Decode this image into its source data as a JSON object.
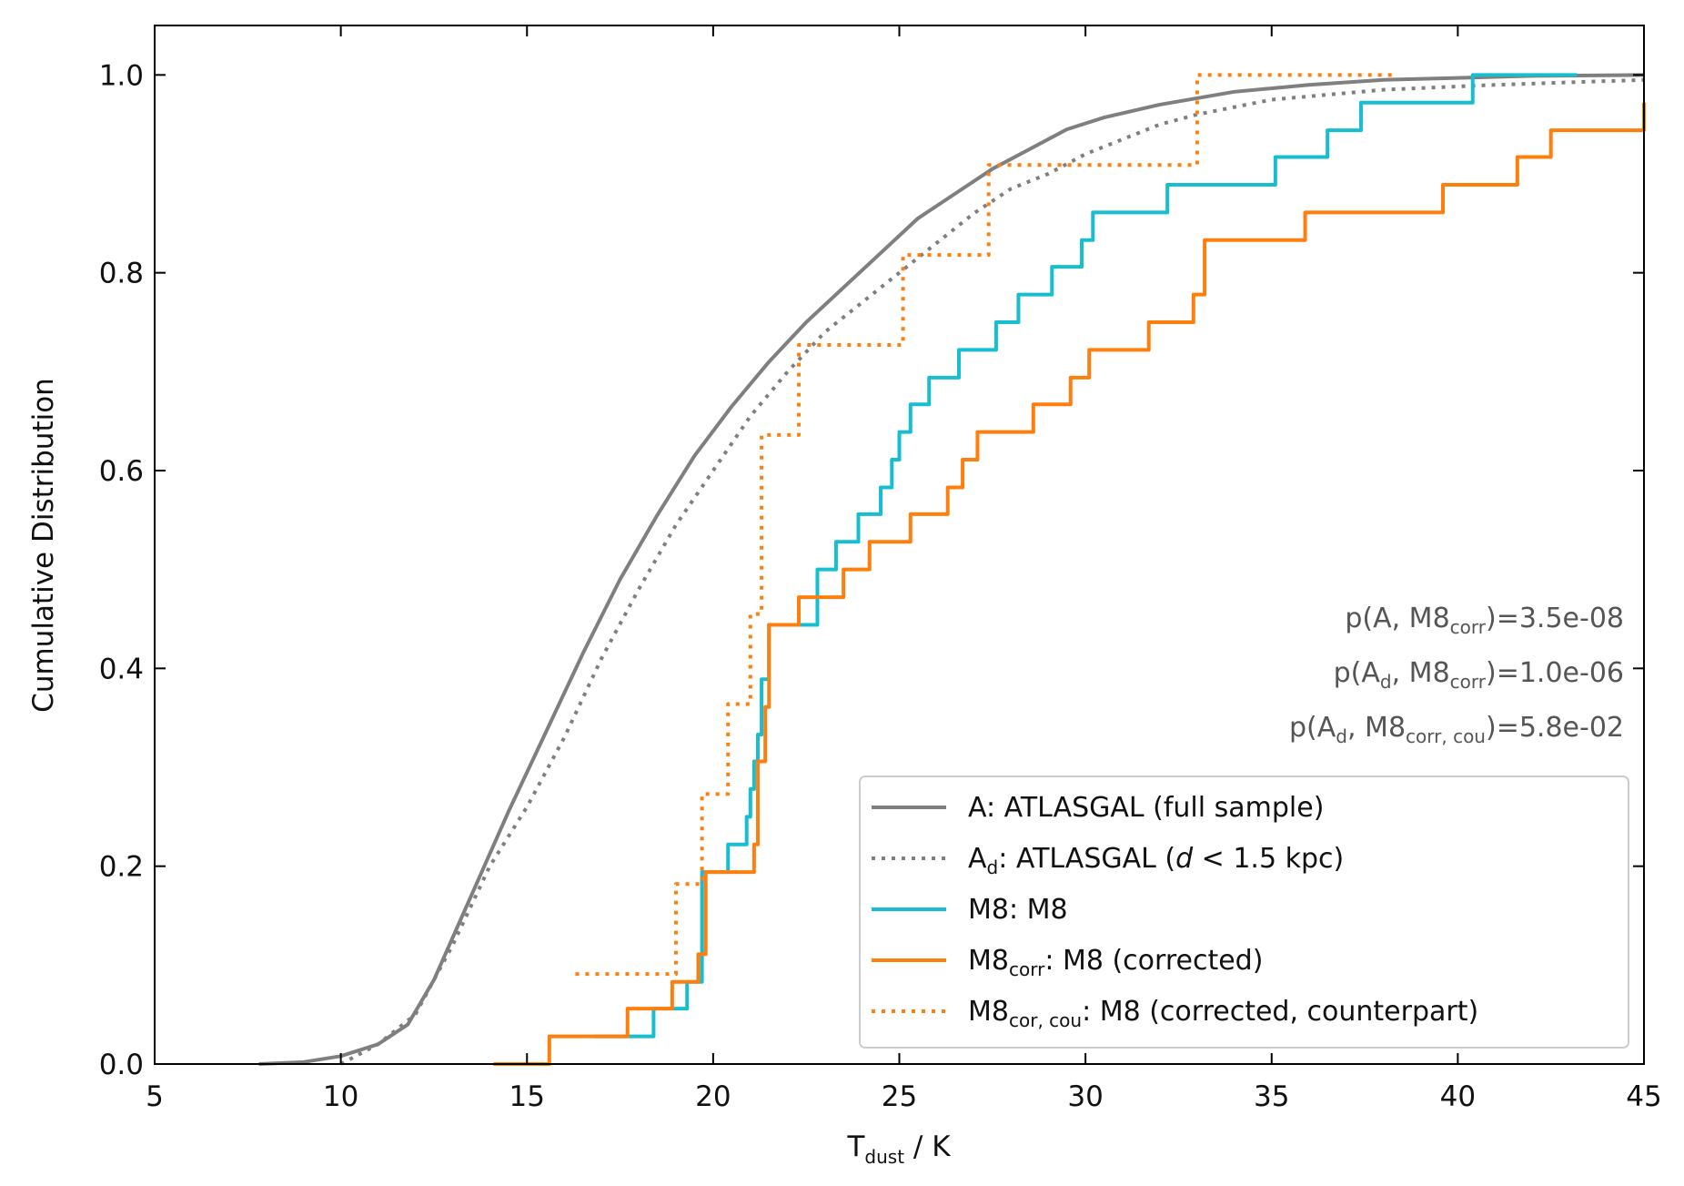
{
  "chart_data": {
    "type": "line",
    "title": "",
    "xlabel": "T",
    "xlabel_sub": "dust",
    "xlabel_suffix": " / K",
    "ylabel": "Cumulative Distribution",
    "xlim": [
      5,
      45
    ],
    "ylim": [
      0,
      1.05
    ],
    "x_ticks": [
      5,
      10,
      15,
      20,
      25,
      30,
      35,
      40,
      45
    ],
    "x_tick_labels": [
      "5",
      "10",
      "15",
      "20",
      "25",
      "30",
      "35",
      "40",
      "45"
    ],
    "y_ticks": [
      0,
      0.2,
      0.4,
      0.6,
      0.8,
      1.0
    ],
    "y_tick_labels": [
      "0.0",
      "0.2",
      "0.4",
      "0.6",
      "0.8",
      "1.0"
    ],
    "grid": false,
    "legend_position": "lower-right",
    "series": [
      {
        "id": "A",
        "name": "A: ATLASGAL (full sample)",
        "color": "#7f7f7f",
        "style": "solid",
        "kind": "smooth",
        "x": [
          7.8,
          9,
          10,
          11,
          11.8,
          12.5,
          13.5,
          14.5,
          15.5,
          16.5,
          17.5,
          18.5,
          19.5,
          20.5,
          21.5,
          22.5,
          23.5,
          24.5,
          25.5,
          26.5,
          27.5,
          28.5,
          29.5,
          30.5,
          32,
          34,
          36,
          38,
          40,
          42,
          45
        ],
        "y": [
          0,
          0.002,
          0.008,
          0.02,
          0.04,
          0.085,
          0.17,
          0.255,
          0.335,
          0.415,
          0.49,
          0.555,
          0.615,
          0.665,
          0.71,
          0.75,
          0.785,
          0.82,
          0.855,
          0.88,
          0.905,
          0.925,
          0.945,
          0.957,
          0.97,
          0.983,
          0.99,
          0.995,
          0.997,
          0.999,
          1.0
        ]
      },
      {
        "id": "Ad",
        "name": "A_d: ATLASGAL (d < 1.5 kpc)",
        "color": "#7f7f7f",
        "style": "dotted",
        "kind": "smooth",
        "x": [
          10,
          11,
          12,
          13,
          14,
          15,
          16,
          17,
          18,
          19,
          20,
          21,
          22,
          23,
          24,
          25,
          26,
          27,
          28,
          29,
          30,
          31,
          32,
          33,
          35,
          38,
          41,
          45
        ],
        "y": [
          0,
          0.02,
          0.05,
          0.12,
          0.2,
          0.26,
          0.33,
          0.41,
          0.48,
          0.545,
          0.6,
          0.655,
          0.7,
          0.74,
          0.77,
          0.8,
          0.83,
          0.86,
          0.885,
          0.9,
          0.92,
          0.935,
          0.95,
          0.96,
          0.975,
          0.985,
          0.99,
          0.995
        ]
      },
      {
        "id": "M8",
        "name": "M8: M8",
        "color": "#17becf",
        "style": "solid",
        "kind": "step",
        "x": [
          16.8,
          18.4,
          19.3,
          19.7,
          20.4,
          20.9,
          21.0,
          21.1,
          21.2,
          21.3,
          21.5,
          22.8,
          23.3,
          23.9,
          24.5,
          24.8,
          25.0,
          25.3,
          25.8,
          26.6,
          27.6,
          28.2,
          29.1,
          29.9,
          30.2,
          32.2,
          35.1,
          36.5,
          37.4,
          40.4,
          43.2
        ],
        "y": [
          0.028,
          0.056,
          0.083,
          0.194,
          0.222,
          0.25,
          0.278,
          0.306,
          0.333,
          0.389,
          0.444,
          0.5,
          0.528,
          0.556,
          0.583,
          0.611,
          0.639,
          0.667,
          0.694,
          0.722,
          0.75,
          0.778,
          0.806,
          0.833,
          0.861,
          0.889,
          0.917,
          0.944,
          0.972,
          1.0,
          1.0
        ]
      },
      {
        "id": "M8corr",
        "name": "M8_corr: M8 (corrected)",
        "color": "#ff7f0e",
        "style": "solid",
        "kind": "step",
        "x": [
          14.1,
          15.6,
          17.7,
          18.9,
          19.6,
          19.8,
          21.1,
          21.2,
          21.4,
          21.5,
          22.3,
          23.5,
          24.2,
          25.3,
          26.3,
          26.7,
          27.1,
          28.6,
          29.6,
          30.1,
          31.7,
          32.9,
          33.2,
          35.9,
          39.6,
          41.6,
          42.5,
          45
        ],
        "y": [
          0,
          0.028,
          0.056,
          0.083,
          0.111,
          0.194,
          0.222,
          0.306,
          0.361,
          0.444,
          0.472,
          0.5,
          0.528,
          0.556,
          0.583,
          0.611,
          0.639,
          0.667,
          0.694,
          0.722,
          0.75,
          0.778,
          0.833,
          0.861,
          0.889,
          0.917,
          0.944,
          0.972
        ]
      },
      {
        "id": "M8corcou",
        "name": "M8_cor,cou: M8 (corrected, counterpart)",
        "color": "#ff7f0e",
        "style": "dotted",
        "kind": "step",
        "x": [
          16.3,
          19.0,
          19.7,
          20.4,
          21.0,
          21.3,
          22.3,
          25.1,
          27.4,
          33.0,
          38.3
        ],
        "y": [
          0.091,
          0.182,
          0.273,
          0.364,
          0.455,
          0.636,
          0.727,
          0.818,
          0.909,
          1.0,
          1.0
        ]
      }
    ],
    "annotations": [
      {
        "id": "p1",
        "prefix": "p(A, M8",
        "sub1": "corr",
        "mid": "",
        "sub2": "",
        "suffix": ")=3.5e-08"
      },
      {
        "id": "p2",
        "prefix": "p(A",
        "sub1": "d",
        "mid": ", M8",
        "sub2": "corr",
        "suffix": ")=1.0e-06"
      },
      {
        "id": "p3",
        "prefix": "p(A",
        "sub1": "d",
        "mid": ", M8",
        "sub2": "corr, cou",
        "suffix": ")=5.8e-02"
      }
    ],
    "legend": [
      {
        "series": "A",
        "main": "A",
        "sub": "",
        "text": ": ATLASGAL (full sample)"
      },
      {
        "series": "Ad",
        "main": "A",
        "sub": "d",
        "text_pre": ": ATLASGAL (",
        "italic": "d",
        "text": " < 1.5 kpc)"
      },
      {
        "series": "M8",
        "main": "M8",
        "sub": "",
        "text": ": M8"
      },
      {
        "series": "M8corr",
        "main": "M8",
        "sub": "corr",
        "text": ": M8 (corrected)"
      },
      {
        "series": "M8corcou",
        "main": "M8",
        "sub": "cor, cou",
        "text": ": M8 (corrected, counterpart)"
      }
    ]
  }
}
